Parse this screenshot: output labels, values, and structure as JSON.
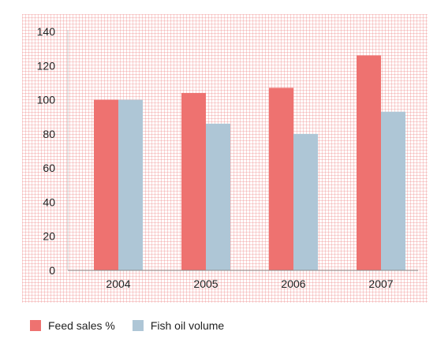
{
  "chart_data": {
    "type": "bar",
    "categories": [
      "2004",
      "2005",
      "2006",
      "2007"
    ],
    "series": [
      {
        "name": "Feed sales %",
        "values": [
          100,
          104,
          107,
          126
        ],
        "color": "#ee7270"
      },
      {
        "name": "Fish oil volume",
        "values": [
          100,
          86,
          80,
          93
        ],
        "color": "#aec6d6"
      }
    ],
    "title": "",
    "xlabel": "",
    "ylabel": "",
    "ylim": [
      0,
      140
    ],
    "yticks": [
      "0",
      "20",
      "40",
      "60",
      "80",
      "100",
      "120",
      "140"
    ],
    "grid": true,
    "legend_position": "bottom-left"
  }
}
